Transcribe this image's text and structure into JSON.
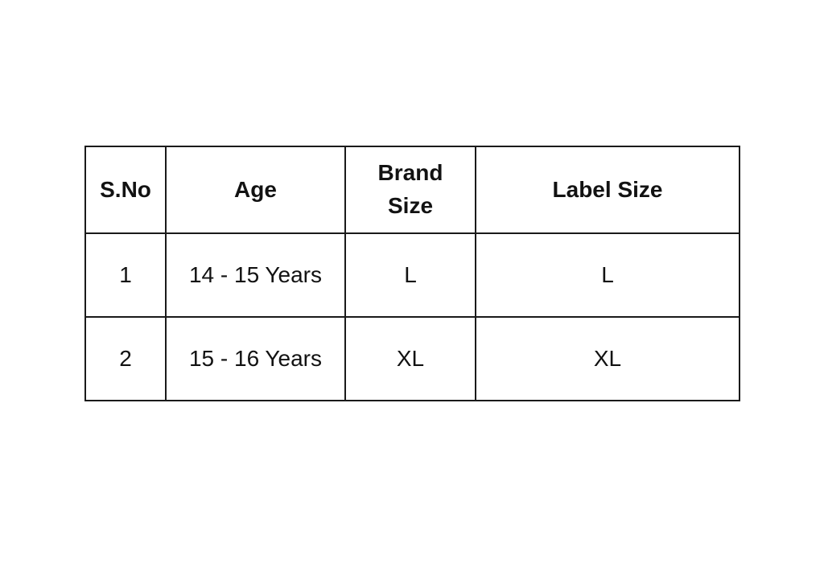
{
  "chart_data": {
    "type": "table",
    "title": "",
    "columns": [
      "S.No",
      "Age",
      "Brand Size",
      "Label Size"
    ],
    "rows": [
      [
        "1",
        "14 - 15 Years",
        "L",
        "L"
      ],
      [
        "2",
        "15 - 16 Years",
        "XL",
        "XL"
      ]
    ]
  },
  "colors": {
    "background": "#ffffff",
    "border": "#1a1a1a",
    "text": "#121212"
  }
}
